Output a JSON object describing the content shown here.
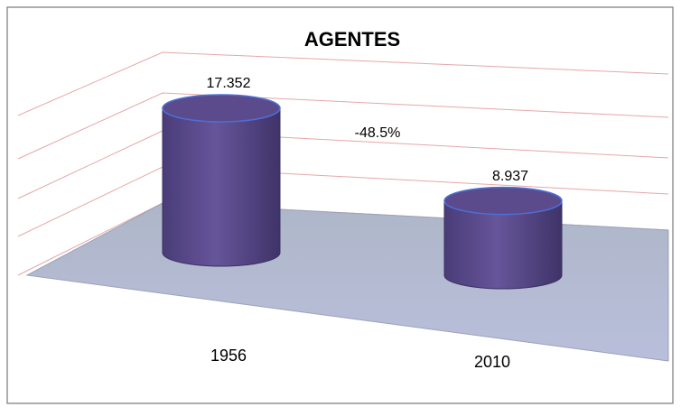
{
  "chart_data": {
    "type": "bar",
    "title": "AGENTES",
    "categories": [
      "1956",
      "2010"
    ],
    "values": [
      17352,
      8937
    ],
    "value_labels": [
      "17.352",
      "8.937"
    ],
    "annotations": [
      "-48.5%"
    ],
    "color": "#5b4b8c",
    "grid": true
  }
}
